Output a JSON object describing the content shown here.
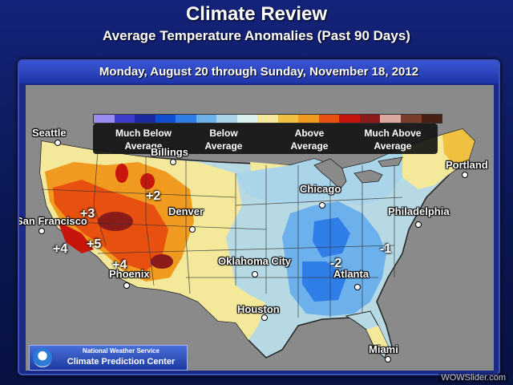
{
  "header": {
    "title": "Climate Review",
    "subtitle": "Average Temperature Anomalies (Past 90 Days)"
  },
  "date_range": "Monday, August 20 through Sunday, November 18, 2012",
  "legend": {
    "colors": [
      "#9a8cf0",
      "#3d3acd",
      "#1b2aa0",
      "#0d4fd0",
      "#2f7ee8",
      "#6cb0ec",
      "#a9d4ea",
      "#d9f0ee",
      "#f4e89a",
      "#f0c040",
      "#f09a20",
      "#e85010",
      "#c8150c",
      "#8b1a1a",
      "#d9a9a0",
      "#7a3d2c",
      "#4a1f14"
    ],
    "labels": [
      {
        "id": "much_below",
        "line1": "Much Below",
        "line2": "Average"
      },
      {
        "id": "below",
        "line1": "Below",
        "line2": "Average"
      },
      {
        "id": "above",
        "line1": "Above",
        "line2": "Average"
      },
      {
        "id": "much_above",
        "line1": "Much Above",
        "line2": "Average"
      }
    ]
  },
  "cities": [
    {
      "id": "seattle",
      "name": "Seattle"
    },
    {
      "id": "billings",
      "name": "Billings"
    },
    {
      "id": "portland",
      "name": "Portland"
    },
    {
      "id": "san-francisco",
      "name": "San Francisco"
    },
    {
      "id": "denver",
      "name": "Denver"
    },
    {
      "id": "chicago",
      "name": "Chicago"
    },
    {
      "id": "philadelphia",
      "name": "Philadelphia"
    },
    {
      "id": "oklahoma-city",
      "name": "Oklahoma City"
    },
    {
      "id": "phoenix",
      "name": "Phoenix"
    },
    {
      "id": "atlanta",
      "name": "Atlanta"
    },
    {
      "id": "houston",
      "name": "Houston"
    },
    {
      "id": "miami",
      "name": "Miami"
    }
  ],
  "anomalies": [
    {
      "id": "plus2",
      "text": "+2"
    },
    {
      "id": "plus3",
      "text": "+3"
    },
    {
      "id": "plus5",
      "text": "+5"
    },
    {
      "id": "plus4-west",
      "text": "+4"
    },
    {
      "id": "plus4-sw",
      "text": "+4"
    },
    {
      "id": "minus2",
      "text": "-2"
    },
    {
      "id": "minus1",
      "text": "-1"
    }
  ],
  "credit": {
    "line1": "National Weather Service",
    "line2": "Climate Prediction Center"
  },
  "watermark": "WOWSlider.com"
}
